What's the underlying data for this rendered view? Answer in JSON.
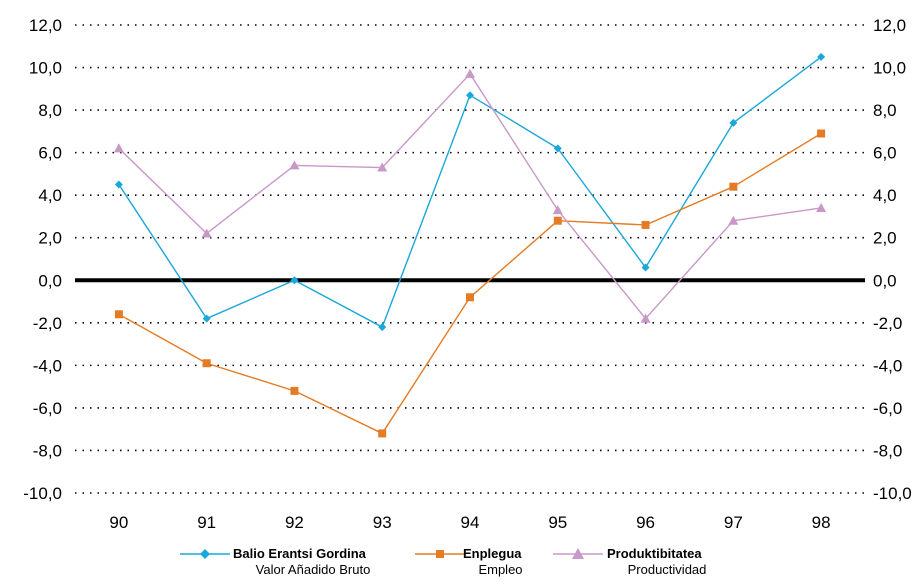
{
  "chart_data": {
    "type": "line",
    "categories": [
      "90",
      "91",
      "92",
      "93",
      "94",
      "95",
      "96",
      "97",
      "98"
    ],
    "y_tick_labels": [
      "12,0",
      "10,0",
      "8,0",
      "6,0",
      "4,0",
      "2,0",
      "0,0",
      "-2,0",
      "-4,0",
      "-6,0",
      "-8,0",
      "-10,0"
    ],
    "ylim": [
      -10,
      12
    ],
    "grid": "horizontal-dotted",
    "legend_position": "bottom",
    "series": [
      {
        "name": "Balio Erantsi Gordina",
        "subname": "Valor Añadido Bruto",
        "color": "#1aa7d9",
        "marker": "diamond",
        "values": [
          4.5,
          -1.8,
          0.0,
          -2.2,
          8.7,
          6.2,
          0.6,
          7.4,
          10.5
        ]
      },
      {
        "name": "Enplegua",
        "subname": "Empleo",
        "color": "#e57b24",
        "marker": "square",
        "values": [
          -1.6,
          -3.9,
          -5.2,
          -7.2,
          -0.8,
          2.8,
          2.6,
          4.4,
          6.9
        ]
      },
      {
        "name": "Produktibitatea",
        "subname": "Productividad",
        "color": "#c898c8",
        "marker": "triangle",
        "values": [
          6.2,
          2.2,
          5.4,
          5.3,
          9.7,
          3.3,
          -1.8,
          2.8,
          3.4
        ]
      }
    ]
  }
}
